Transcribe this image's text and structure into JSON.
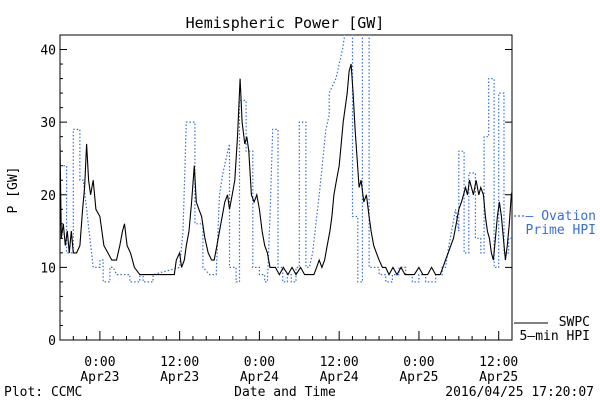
{
  "chart_data": {
    "type": "line",
    "title": "Hemispheric Power [GW]",
    "xlabel": "Date and Time",
    "ylabel": "P [GW]",
    "ylim": [
      0,
      42
    ],
    "xlim_hours": [
      -6,
      62
    ],
    "yticks": [
      0,
      10,
      20,
      30,
      40
    ],
    "xticks": [
      {
        "h": 0,
        "time": "0:00",
        "date": "Apr23"
      },
      {
        "h": 12,
        "time": "12:00",
        "date": "Apr23"
      },
      {
        "h": 24,
        "time": "0:00",
        "date": "Apr24"
      },
      {
        "h": 36,
        "time": "12:00",
        "date": "Apr24"
      },
      {
        "h": 48,
        "time": "0:00",
        "date": "Apr25"
      },
      {
        "h": 60,
        "time": "12:00",
        "date": "Apr25"
      }
    ],
    "grid": false,
    "legend": "right",
    "series": [
      {
        "name_lines": [
          "SWPC",
          "5-min HPI"
        ],
        "color": "#000000",
        "style": "solid",
        "points": [
          [
            -6.0,
            27
          ],
          [
            -5.8,
            14
          ],
          [
            -5.5,
            16
          ],
          [
            -5.2,
            13
          ],
          [
            -4.9,
            15
          ],
          [
            -4.6,
            12
          ],
          [
            -4.3,
            15
          ],
          [
            -4.0,
            12
          ],
          [
            -3.5,
            12
          ],
          [
            -3.0,
            13
          ],
          [
            -2.6,
            18
          ],
          [
            -2.3,
            21
          ],
          [
            -2.0,
            27
          ],
          [
            -1.7,
            22
          ],
          [
            -1.4,
            20
          ],
          [
            -1.0,
            22
          ],
          [
            -0.6,
            18
          ],
          [
            0.0,
            17
          ],
          [
            0.6,
            13
          ],
          [
            1.2,
            12
          ],
          [
            1.8,
            11
          ],
          [
            2.5,
            11
          ],
          [
            3.0,
            13
          ],
          [
            3.4,
            15
          ],
          [
            3.7,
            16
          ],
          [
            4.1,
            13
          ],
          [
            4.6,
            12
          ],
          [
            5.2,
            10
          ],
          [
            6.0,
            9
          ],
          [
            8.0,
            9
          ],
          [
            10.0,
            9
          ],
          [
            11.2,
            9
          ],
          [
            11.5,
            11
          ],
          [
            12.0,
            12
          ],
          [
            12.3,
            10
          ],
          [
            12.7,
            11
          ],
          [
            13.0,
            13
          ],
          [
            13.4,
            15
          ],
          [
            13.8,
            19
          ],
          [
            14.2,
            24
          ],
          [
            14.5,
            19
          ],
          [
            14.9,
            18
          ],
          [
            15.3,
            17
          ],
          [
            15.8,
            14
          ],
          [
            16.3,
            12
          ],
          [
            16.8,
            11
          ],
          [
            17.2,
            11
          ],
          [
            17.6,
            13
          ],
          [
            18.0,
            15
          ],
          [
            18.4,
            17
          ],
          [
            18.8,
            19
          ],
          [
            19.2,
            20
          ],
          [
            19.5,
            18
          ],
          [
            19.9,
            20
          ],
          [
            20.3,
            22
          ],
          [
            20.7,
            28
          ],
          [
            21.1,
            36
          ],
          [
            21.4,
            30
          ],
          [
            21.8,
            27
          ],
          [
            22.1,
            28
          ],
          [
            22.4,
            26
          ],
          [
            22.8,
            20
          ],
          [
            23.2,
            19
          ],
          [
            23.6,
            20
          ],
          [
            24.0,
            18
          ],
          [
            24.4,
            15
          ],
          [
            24.8,
            13
          ],
          [
            25.2,
            12
          ],
          [
            25.6,
            10
          ],
          [
            26.4,
            10
          ],
          [
            27.0,
            9
          ],
          [
            27.6,
            10
          ],
          [
            28.3,
            9
          ],
          [
            28.9,
            10
          ],
          [
            29.5,
            9
          ],
          [
            30.2,
            10
          ],
          [
            30.8,
            9
          ],
          [
            31.5,
            9
          ],
          [
            32.2,
            9
          ],
          [
            32.6,
            10
          ],
          [
            33.0,
            11
          ],
          [
            33.4,
            10
          ],
          [
            33.8,
            11
          ],
          [
            34.2,
            13
          ],
          [
            34.6,
            15
          ],
          [
            34.9,
            17
          ],
          [
            35.2,
            20
          ],
          [
            35.6,
            22
          ],
          [
            36.0,
            24
          ],
          [
            36.3,
            27
          ],
          [
            36.6,
            30
          ],
          [
            36.9,
            32
          ],
          [
            37.2,
            34
          ],
          [
            37.5,
            37
          ],
          [
            37.8,
            38
          ],
          [
            38.1,
            34
          ],
          [
            38.4,
            29
          ],
          [
            38.7,
            25
          ],
          [
            39.0,
            21
          ],
          [
            39.3,
            22
          ],
          [
            39.7,
            19
          ],
          [
            40.1,
            20
          ],
          [
            40.5,
            17
          ],
          [
            40.8,
            15
          ],
          [
            41.2,
            13
          ],
          [
            41.6,
            12
          ],
          [
            42.0,
            11
          ],
          [
            42.5,
            10
          ],
          [
            43.0,
            10
          ],
          [
            43.5,
            9
          ],
          [
            44.1,
            10
          ],
          [
            44.7,
            9
          ],
          [
            45.3,
            10
          ],
          [
            45.9,
            9
          ],
          [
            46.6,
            9
          ],
          [
            47.3,
            9
          ],
          [
            48.0,
            10
          ],
          [
            48.6,
            9
          ],
          [
            49.3,
            9
          ],
          [
            49.9,
            10
          ],
          [
            50.5,
            9
          ],
          [
            51.2,
            9
          ],
          [
            51.6,
            10
          ],
          [
            52.0,
            11
          ],
          [
            52.4,
            12
          ],
          [
            52.8,
            13
          ],
          [
            53.2,
            14
          ],
          [
            53.6,
            16
          ],
          [
            54.0,
            18
          ],
          [
            54.4,
            19
          ],
          [
            54.7,
            20
          ],
          [
            55.0,
            21
          ],
          [
            55.3,
            20
          ],
          [
            55.6,
            22
          ],
          [
            55.9,
            21
          ],
          [
            56.2,
            20
          ],
          [
            56.6,
            22
          ],
          [
            57.0,
            20
          ],
          [
            57.3,
            21
          ],
          [
            57.7,
            20
          ],
          [
            58.0,
            17
          ],
          [
            58.3,
            15
          ],
          [
            58.6,
            14
          ],
          [
            58.9,
            12
          ],
          [
            59.2,
            11
          ],
          [
            59.5,
            14
          ],
          [
            59.8,
            17
          ],
          [
            60.1,
            19
          ],
          [
            60.4,
            17
          ],
          [
            60.7,
            14
          ],
          [
            61.0,
            11
          ],
          [
            61.3,
            13
          ],
          [
            61.6,
            16
          ],
          [
            61.9,
            20
          ],
          [
            62.2,
            21
          ],
          [
            62.5,
            20
          ],
          [
            62.8,
            22
          ]
        ]
      },
      {
        "name_lines": [
          "Ovation",
          "Prime HPI"
        ],
        "color": "#3a6fd0",
        "style": "dotted",
        "points": [
          [
            -6.0,
            24
          ],
          [
            -5.0,
            24
          ],
          [
            -5.0,
            12
          ],
          [
            -4.0,
            12
          ],
          [
            -4.0,
            29
          ],
          [
            -3.0,
            29
          ],
          [
            -3.0,
            22
          ],
          [
            -2.5,
            22
          ],
          [
            -1.0,
            10
          ],
          [
            0.0,
            10
          ],
          [
            0.0,
            11
          ],
          [
            0.5,
            11
          ],
          [
            0.5,
            8
          ],
          [
            1.5,
            8
          ],
          [
            1.5,
            10
          ],
          [
            2.0,
            10
          ],
          [
            2.5,
            9
          ],
          [
            4.5,
            9
          ],
          [
            4.5,
            8
          ],
          [
            6.0,
            8
          ],
          [
            6.0,
            9
          ],
          [
            6.5,
            9
          ],
          [
            6.5,
            8
          ],
          [
            8.0,
            8
          ],
          [
            8.0,
            9
          ],
          [
            12.0,
            10
          ],
          [
            12.5,
            15
          ],
          [
            13.0,
            30
          ],
          [
            14.3,
            30
          ],
          [
            14.3,
            16
          ],
          [
            15.5,
            16
          ],
          [
            15.5,
            10
          ],
          [
            16.5,
            9
          ],
          [
            17.5,
            9
          ],
          [
            18.0,
            20
          ],
          [
            18.5,
            23
          ],
          [
            19.5,
            27
          ],
          [
            19.5,
            10
          ],
          [
            20.5,
            10
          ],
          [
            20.5,
            8
          ],
          [
            21.0,
            8
          ],
          [
            21.0,
            33
          ],
          [
            22.0,
            33
          ],
          [
            22.0,
            26
          ],
          [
            23.0,
            26
          ],
          [
            23.0,
            10
          ],
          [
            24.0,
            10
          ],
          [
            24.0,
            9
          ],
          [
            24.8,
            9
          ],
          [
            24.8,
            8
          ],
          [
            25.2,
            8
          ],
          [
            25.6,
            17
          ],
          [
            26.0,
            29
          ],
          [
            26.8,
            29
          ],
          [
            26.8,
            10
          ],
          [
            27.5,
            10
          ],
          [
            27.5,
            8
          ],
          [
            28.2,
            8
          ],
          [
            28.2,
            9
          ],
          [
            28.8,
            9
          ],
          [
            28.8,
            8
          ],
          [
            29.5,
            8
          ],
          [
            29.5,
            10
          ],
          [
            30.0,
            10
          ],
          [
            30.0,
            30
          ],
          [
            31.0,
            30
          ],
          [
            31.0,
            10
          ],
          [
            31.5,
            10
          ],
          [
            32.0,
            12
          ],
          [
            33.0,
            20
          ],
          [
            34.0,
            29
          ],
          [
            34.5,
            31
          ],
          [
            34.5,
            34
          ],
          [
            35.5,
            36
          ],
          [
            36.5,
            40
          ],
          [
            37.0,
            43
          ],
          [
            38.0,
            43
          ],
          [
            38.0,
            17
          ],
          [
            38.8,
            17
          ],
          [
            38.8,
            8
          ],
          [
            39.5,
            8
          ],
          [
            39.5,
            43
          ],
          [
            40.5,
            43
          ],
          [
            40.5,
            10
          ],
          [
            41.0,
            10
          ],
          [
            42.0,
            10
          ],
          [
            42.0,
            9
          ],
          [
            43.0,
            9
          ],
          [
            43.0,
            8
          ],
          [
            44.0,
            8
          ],
          [
            44.0,
            9
          ],
          [
            45.0,
            9
          ],
          [
            45.0,
            10
          ],
          [
            46.0,
            10
          ],
          [
            46.0,
            9
          ],
          [
            47.0,
            9
          ],
          [
            47.0,
            8
          ],
          [
            48.0,
            8
          ],
          [
            48.0,
            9
          ],
          [
            49.0,
            9
          ],
          [
            49.0,
            8
          ],
          [
            50.5,
            8
          ],
          [
            50.5,
            9
          ],
          [
            51.5,
            9
          ],
          [
            51.5,
            10
          ],
          [
            52.0,
            10
          ],
          [
            52.5,
            13
          ],
          [
            53.5,
            18
          ],
          [
            54.0,
            15
          ],
          [
            54.0,
            26
          ],
          [
            54.8,
            26
          ],
          [
            54.8,
            12
          ],
          [
            55.5,
            12
          ],
          [
            55.5,
            23
          ],
          [
            56.5,
            23
          ],
          [
            56.5,
            14
          ],
          [
            57.3,
            14
          ],
          [
            57.3,
            12
          ],
          [
            57.8,
            12
          ],
          [
            57.8,
            28
          ],
          [
            58.5,
            28
          ],
          [
            58.5,
            36
          ],
          [
            59.3,
            36
          ],
          [
            59.3,
            10
          ],
          [
            60.0,
            10
          ],
          [
            60.0,
            34
          ],
          [
            60.8,
            34
          ],
          [
            60.8,
            12
          ],
          [
            61.5,
            12
          ],
          [
            61.5,
            14
          ],
          [
            62.5,
            14
          ],
          [
            62.5,
            15
          ]
        ]
      }
    ]
  },
  "footer": {
    "plot_label": "Plot: CCMC",
    "timestamp": "2016/04/25 17:20:07"
  },
  "colors": {
    "model": "#3a6fd0",
    "observed": "#000000",
    "axis": "#000000"
  }
}
